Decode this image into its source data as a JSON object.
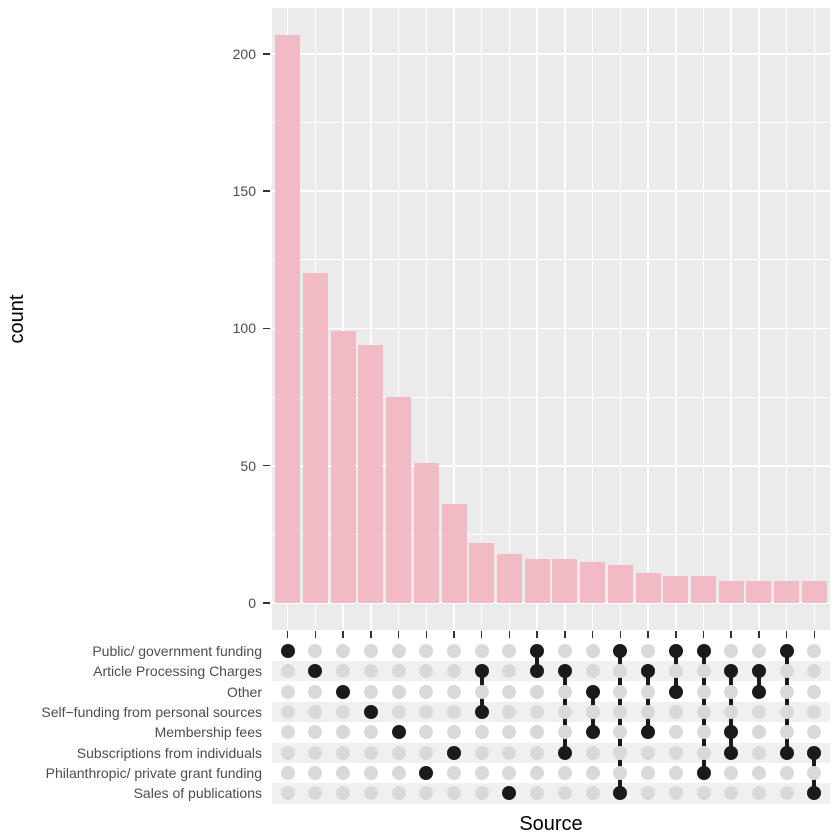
{
  "chart_data": {
    "type": "bar",
    "variant": "upset-plot",
    "title": "",
    "xlabel": "Source",
    "ylabel": "count",
    "ylim": [
      0,
      217
    ],
    "yticks": [
      0,
      50,
      100,
      150,
      200
    ],
    "yticks_minor": [
      25,
      75,
      125,
      175
    ],
    "grid": "on",
    "legend": "none",
    "sets": [
      "Public/ government funding",
      "Article Processing Charges",
      "Other",
      "Self−funding from personal sources",
      "Membership fees",
      "Subscriptions from individuals",
      "Philanthropic/ private grant funding",
      "Sales of publications"
    ],
    "combinations": [
      {
        "members": [
          "Public/ government funding"
        ],
        "member_rows": [
          0
        ],
        "value": 207
      },
      {
        "members": [
          "Article Processing Charges"
        ],
        "member_rows": [
          1
        ],
        "value": 120
      },
      {
        "members": [
          "Other"
        ],
        "member_rows": [
          2
        ],
        "value": 99
      },
      {
        "members": [
          "Self−funding from personal sources"
        ],
        "member_rows": [
          3
        ],
        "value": 94
      },
      {
        "members": [
          "Membership fees"
        ],
        "member_rows": [
          4
        ],
        "value": 75
      },
      {
        "members": [
          "Philanthropic/ private grant funding"
        ],
        "member_rows": [
          6
        ],
        "value": 51
      },
      {
        "members": [
          "Subscriptions from individuals"
        ],
        "member_rows": [
          5
        ],
        "value": 36
      },
      {
        "members": [
          "Article Processing Charges",
          "Self−funding from personal sources"
        ],
        "member_rows": [
          1,
          3
        ],
        "value": 22
      },
      {
        "members": [
          "Sales of publications"
        ],
        "member_rows": [
          7
        ],
        "value": 18
      },
      {
        "members": [
          "Public/ government funding",
          "Article Processing Charges"
        ],
        "member_rows": [
          0,
          1
        ],
        "value": 16
      },
      {
        "members": [
          "Article Processing Charges",
          "Subscriptions from individuals"
        ],
        "member_rows": [
          1,
          5
        ],
        "value": 16
      },
      {
        "members": [
          "Other",
          "Membership fees"
        ],
        "member_rows": [
          2,
          4
        ],
        "value": 15
      },
      {
        "members": [
          "Public/ government funding",
          "Sales of publications"
        ],
        "member_rows": [
          0,
          7
        ],
        "value": 14
      },
      {
        "members": [
          "Article Processing Charges",
          "Membership fees"
        ],
        "member_rows": [
          1,
          4
        ],
        "value": 11
      },
      {
        "members": [
          "Public/ government funding",
          "Other"
        ],
        "member_rows": [
          0,
          2
        ],
        "value": 10
      },
      {
        "members": [
          "Public/ government funding",
          "Philanthropic/ private grant funding"
        ],
        "member_rows": [
          0,
          6
        ],
        "value": 10
      },
      {
        "members": [
          "Article Processing Charges",
          "Membership fees",
          "Subscriptions from individuals"
        ],
        "member_rows": [
          1,
          4,
          5
        ],
        "value": 8
      },
      {
        "members": [
          "Article Processing Charges",
          "Other"
        ],
        "member_rows": [
          1,
          2
        ],
        "value": 8
      },
      {
        "members": [
          "Public/ government funding",
          "Subscriptions from individuals"
        ],
        "member_rows": [
          0,
          5
        ],
        "value": 8
      },
      {
        "members": [
          "Subscriptions from individuals",
          "Sales of publications"
        ],
        "member_rows": [
          5,
          7
        ],
        "value": 8
      }
    ],
    "colors": {
      "bar_fill": "#F2BAC5",
      "panel_bg": "#EBEBEB",
      "grid": "#FFFFFF",
      "dot_empty": "#D9D9D9",
      "dot_filled": "#1A1A1A",
      "connector": "#1A1A1A",
      "stripe_light": "#FFFFFF",
      "stripe_dark": "#F0F0F0",
      "tick_text": "#4D4D4D",
      "axis_title_text": "#000000",
      "tick_mark": "#333333"
    }
  }
}
